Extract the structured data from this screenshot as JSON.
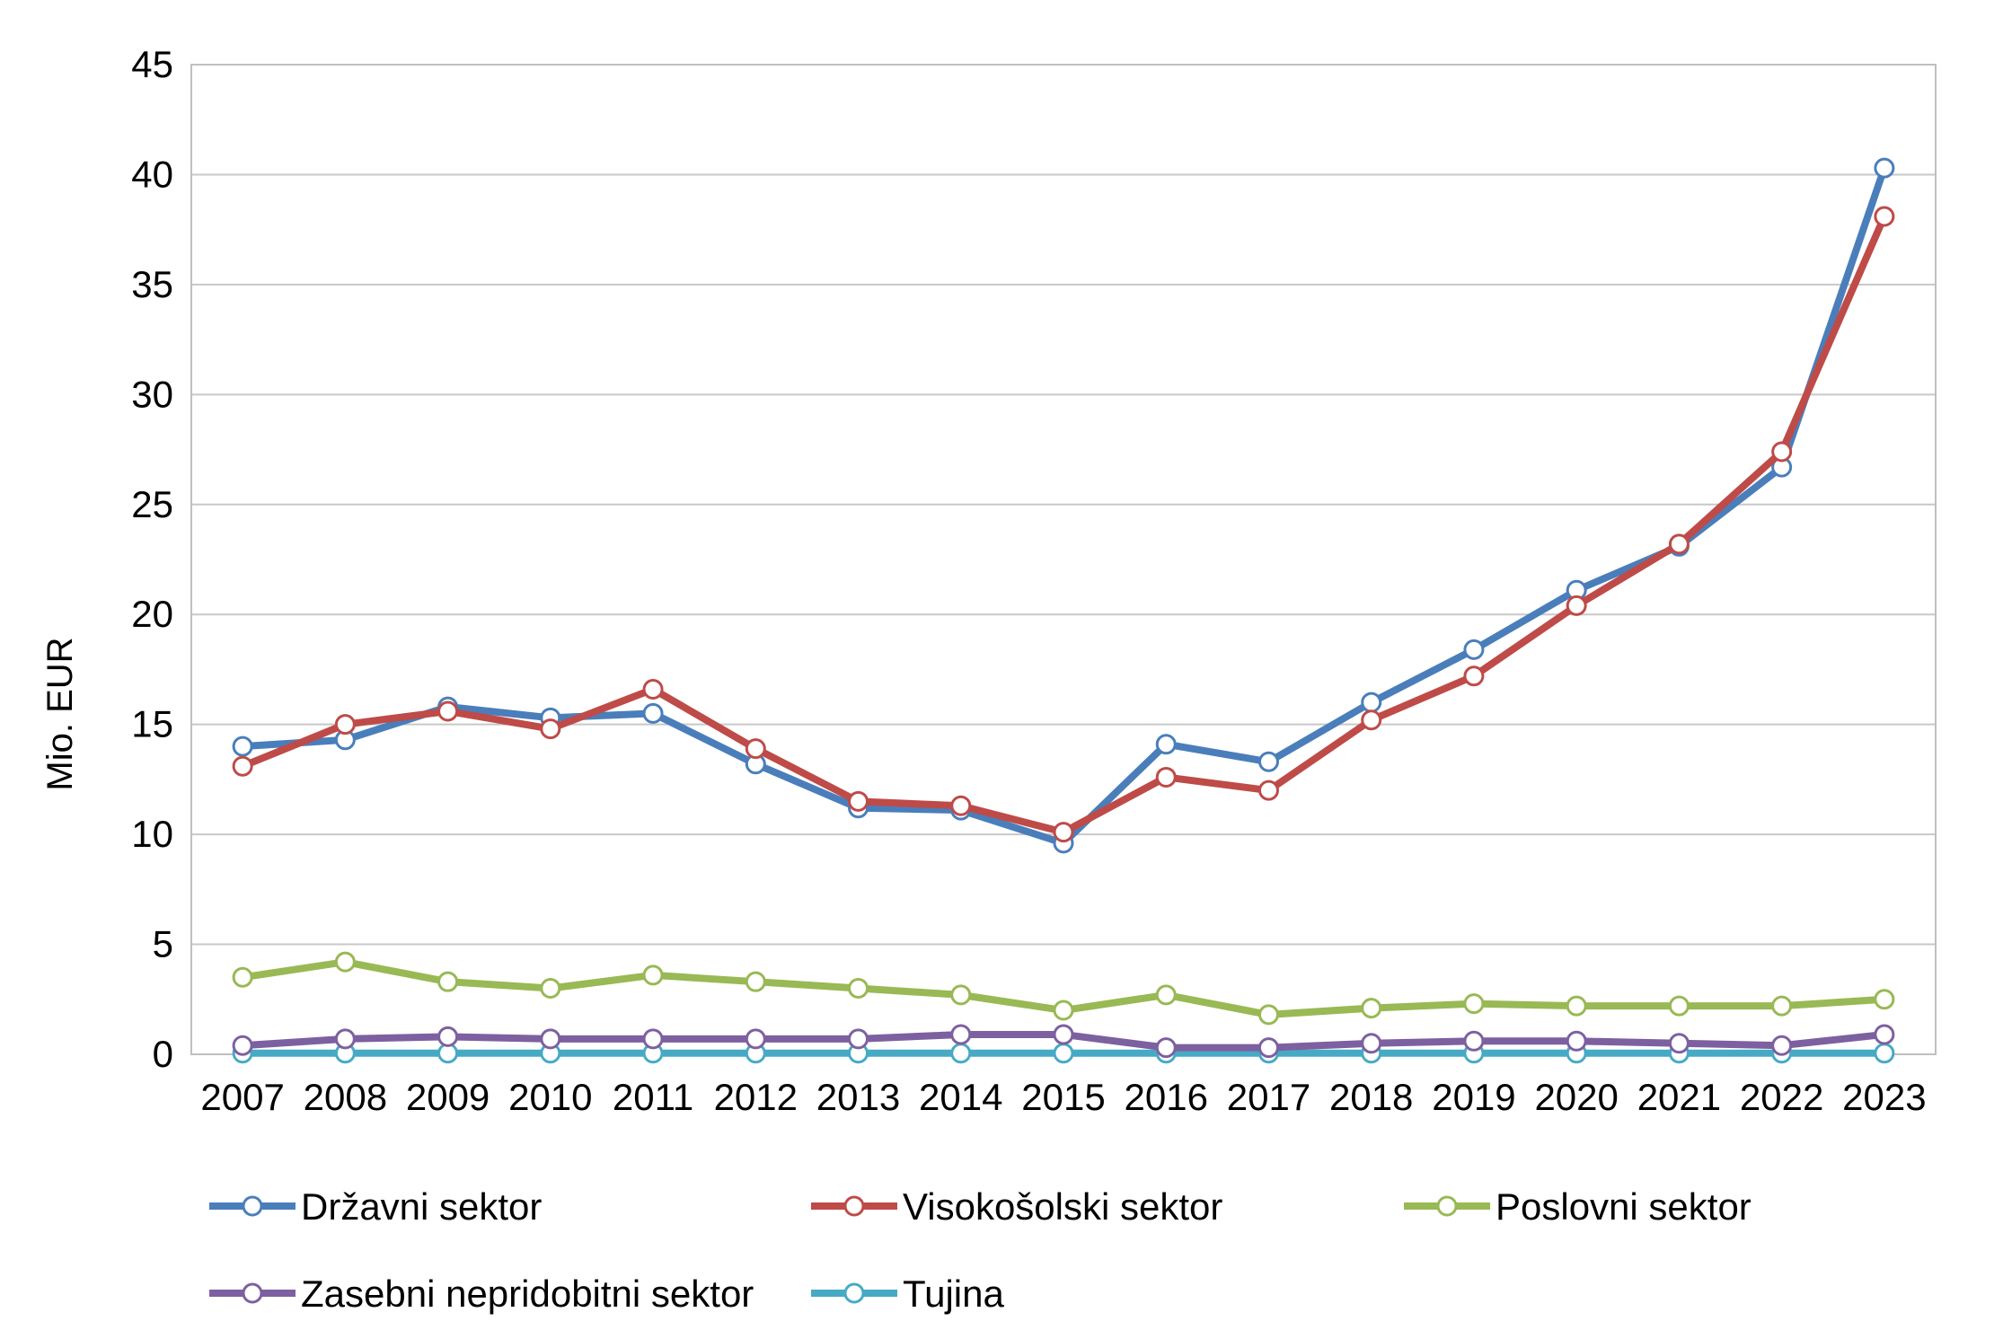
{
  "chart_data": {
    "type": "line",
    "ylabel": "Mio. EUR",
    "xlabel": "",
    "categories": [
      "2007",
      "2008",
      "2009",
      "2010",
      "2011",
      "2012",
      "2013",
      "2014",
      "2015",
      "2016",
      "2017",
      "2018",
      "2019",
      "2020",
      "2021",
      "2022",
      "2023"
    ],
    "y_ticks": [
      "0",
      "5",
      "10",
      "15",
      "20",
      "25",
      "30",
      "35",
      "40",
      "45"
    ],
    "ylim": [
      0,
      45
    ],
    "grid": true,
    "legend_placement": "bottom",
    "series": [
      {
        "name": "Državni sektor",
        "color": "#4a7ebb",
        "values": [
          14.0,
          14.3,
          15.8,
          15.3,
          15.5,
          13.2,
          11.2,
          11.1,
          9.6,
          14.1,
          13.3,
          16.0,
          18.4,
          21.1,
          23.1,
          26.7,
          40.3
        ]
      },
      {
        "name": "Visokošolski sektor",
        "color": "#be4b48",
        "values": [
          13.1,
          15.0,
          15.6,
          14.8,
          16.6,
          13.9,
          11.5,
          11.3,
          10.1,
          12.6,
          12.0,
          15.2,
          17.2,
          20.4,
          23.2,
          27.4,
          38.1
        ]
      },
      {
        "name": "Poslovni sektor",
        "color": "#98b954",
        "values": [
          3.5,
          4.2,
          3.3,
          3.0,
          3.6,
          3.3,
          3.0,
          2.7,
          2.0,
          2.7,
          1.8,
          2.1,
          2.3,
          2.2,
          2.2,
          2.2,
          2.5
        ]
      },
      {
        "name": "Zasebni nepridobitni sektor",
        "color": "#7d60a0",
        "values": [
          0.4,
          0.7,
          0.8,
          0.7,
          0.7,
          0.7,
          0.7,
          0.9,
          0.9,
          0.3,
          0.3,
          0.5,
          0.6,
          0.6,
          0.5,
          0.4,
          0.9
        ]
      },
      {
        "name": "Tujina",
        "color": "#46aac5",
        "values": [
          0.05,
          0.05,
          0.05,
          0.05,
          0.05,
          0.05,
          0.05,
          0.05,
          0.05,
          0.05,
          0.05,
          0.05,
          0.05,
          0.05,
          0.05,
          0.05,
          0.05
        ]
      }
    ]
  }
}
